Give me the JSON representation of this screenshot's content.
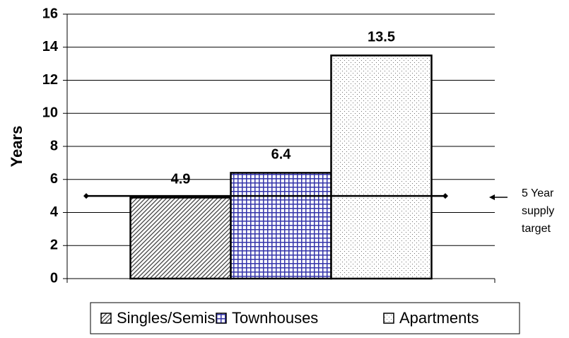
{
  "chart_data": {
    "type": "bar",
    "y_label": "Years",
    "categories": [
      null
    ],
    "series": [
      {
        "name": "Singles/Semis",
        "color": "#404040",
        "pattern": "diagonal",
        "values": [
          4.9
        ]
      },
      {
        "name": "Townhouses",
        "color": "#3333aa",
        "pattern": "grid",
        "values": [
          6.4
        ]
      },
      {
        "name": "Apartments",
        "color": "#707070",
        "pattern": "dots",
        "values": [
          13.5
        ]
      }
    ],
    "reference_line": {
      "value": 5,
      "lines": [
        "5 Year",
        "supply",
        "target"
      ]
    },
    "ylim": [
      0,
      16
    ],
    "yticks": [
      0,
      2,
      4,
      6,
      8,
      10,
      12,
      14,
      16
    ],
    "grid": true,
    "legend": "bottom"
  }
}
